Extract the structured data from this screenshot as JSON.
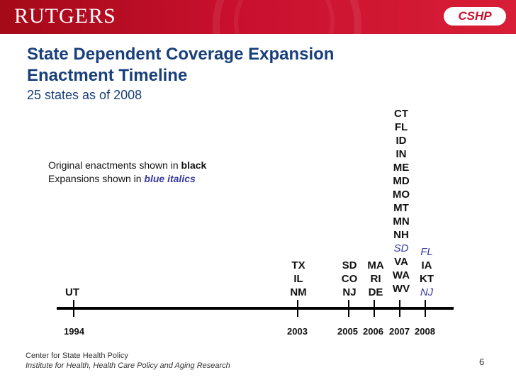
{
  "header": {
    "logo_left": "RUTGERS",
    "logo_right": "CSHP"
  },
  "slide": {
    "title_line1": "State Dependent Coverage Expansion",
    "title_line2": "Enactment Timeline",
    "subtitle": "25 states as of 2008"
  },
  "legend": {
    "line1_prefix": "Original enactments shown in ",
    "line1_emph": "black",
    "line2_prefix": "Expansions shown in ",
    "line2_emph": "blue italics",
    "emph_color": "#3a3a9e"
  },
  "timeline": {
    "years": [
      "1994",
      "2003",
      "2005",
      "2006",
      "2007",
      "2008"
    ],
    "y1994": [
      "UT"
    ],
    "y2003": [
      "TX",
      "IL",
      "NM"
    ],
    "y2005": [
      "SD",
      "CO",
      "NJ"
    ],
    "y2006": [
      "MA",
      "RI",
      "DE"
    ],
    "y2007_original": [
      "CT",
      "FL",
      "ID",
      "IN",
      "ME",
      "MD",
      "MO",
      "MT",
      "MN",
      "NH"
    ],
    "y2007_expansion": [
      "SD"
    ],
    "y2007_original_b": [
      "VA",
      "WA",
      "WV"
    ],
    "y2008_expansion": [
      "FL"
    ],
    "y2008_original": [
      "IA",
      "KT"
    ],
    "y2008_expansion_b": [
      "NJ"
    ]
  },
  "footer": {
    "org": "Center for State Health Policy",
    "institute": "Institute for Health, Health Care Policy and Aging Research",
    "page_number": "6"
  }
}
